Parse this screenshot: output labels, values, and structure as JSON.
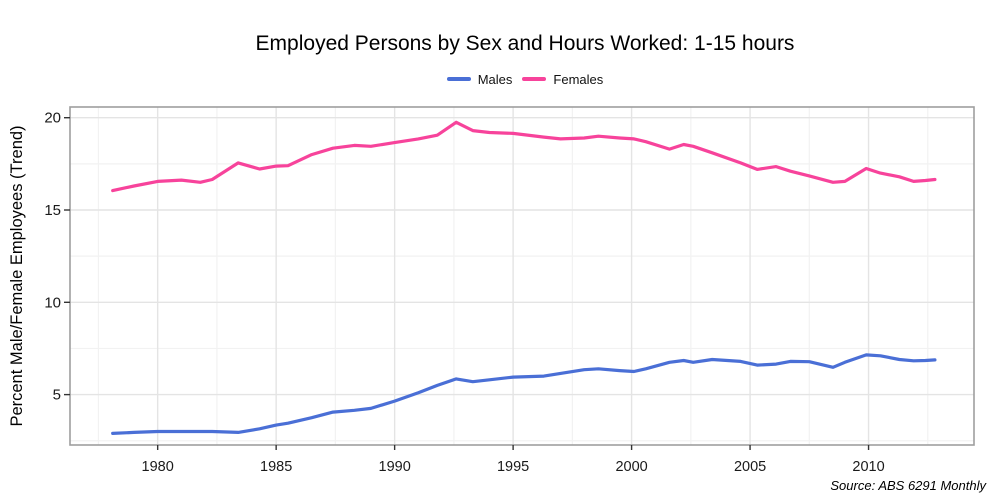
{
  "title": "Employed Persons by Sex and Hours Worked: 1-15 hours",
  "source_note": "Source: ABS 6291 Monthly",
  "y_axis_title": "Percent Male/Female Employees (Trend)",
  "legend": [
    {
      "label": "Males",
      "color": "#4a6fd6"
    },
    {
      "label": "Females",
      "color": "#f7439b"
    }
  ],
  "colors": {
    "males": "#4a6fd6",
    "females": "#f7439b",
    "grid_major": "#e4e4e4",
    "grid_minor": "#f2f2f2",
    "plot_border": "#9e9e9e",
    "tick_mark": "#333333",
    "tick_label": "#1a1a1a"
  },
  "chart_data": {
    "type": "line",
    "title": "Employed Persons by Sex and Hours Worked: 1-15 hours",
    "xlabel": "",
    "ylabel": "Percent Male/Female Employees (Trend)",
    "grid": true,
    "legend_position": "top",
    "x_range": [
      1976.3,
      2014.45
    ],
    "y_range": [
      2.27,
      20.58
    ],
    "x_ticks": [
      1980,
      1985,
      1990,
      1995,
      2000,
      2005,
      2010
    ],
    "x_minor_ticks": [
      1977.5,
      1982.5,
      1987.5,
      1992.5,
      1997.5,
      2002.5,
      2007.5,
      2012.5
    ],
    "y_ticks": [
      5,
      10,
      15,
      20
    ],
    "y_minor_ticks": [
      2.5,
      7.5,
      12.5,
      17.5
    ],
    "x": [
      1978.1,
      1979,
      1980,
      1981,
      1981.8,
      1982.3,
      1983.4,
      1984.3,
      1985,
      1985.5,
      1986.5,
      1987.4,
      1988.3,
      1989,
      1990,
      1991,
      1991.8,
      1992.6,
      1993.3,
      1994,
      1995,
      1996.3,
      1997,
      1998,
      1998.6,
      1999.5,
      2000.1,
      2000.6,
      2001.6,
      2002.2,
      2002.6,
      2003.4,
      2004.6,
      2005.3,
      2006.1,
      2006.7,
      2007.5,
      2008.5,
      2009,
      2009.9,
      2010.5,
      2011.3,
      2011.9,
      2012.4,
      2012.8
    ],
    "series": [
      {
        "name": "Males",
        "color": "#4a6fd6",
        "values": [
          2.9,
          2.95,
          3.0,
          3.0,
          3.0,
          3.0,
          2.95,
          3.15,
          3.35,
          3.45,
          3.75,
          4.05,
          4.15,
          4.25,
          4.65,
          5.1,
          5.5,
          5.85,
          5.7,
          5.8,
          5.95,
          6.0,
          6.15,
          6.35,
          6.4,
          6.3,
          6.25,
          6.4,
          6.75,
          6.85,
          6.75,
          6.9,
          6.8,
          6.6,
          6.65,
          6.8,
          6.78,
          6.48,
          6.75,
          7.15,
          7.1,
          6.9,
          6.83,
          6.85,
          6.88
        ]
      },
      {
        "name": "Females",
        "color": "#f7439b",
        "values": [
          16.05,
          16.3,
          16.55,
          16.62,
          16.5,
          16.65,
          17.55,
          17.22,
          17.38,
          17.4,
          18.0,
          18.35,
          18.5,
          18.45,
          18.65,
          18.85,
          19.05,
          19.75,
          19.3,
          19.2,
          19.15,
          18.95,
          18.85,
          18.9,
          19.0,
          18.9,
          18.85,
          18.7,
          18.3,
          18.55,
          18.45,
          18.1,
          17.55,
          17.2,
          17.35,
          17.1,
          16.85,
          16.5,
          16.55,
          17.25,
          17.0,
          16.8,
          16.55,
          16.6,
          16.65
        ]
      }
    ]
  }
}
